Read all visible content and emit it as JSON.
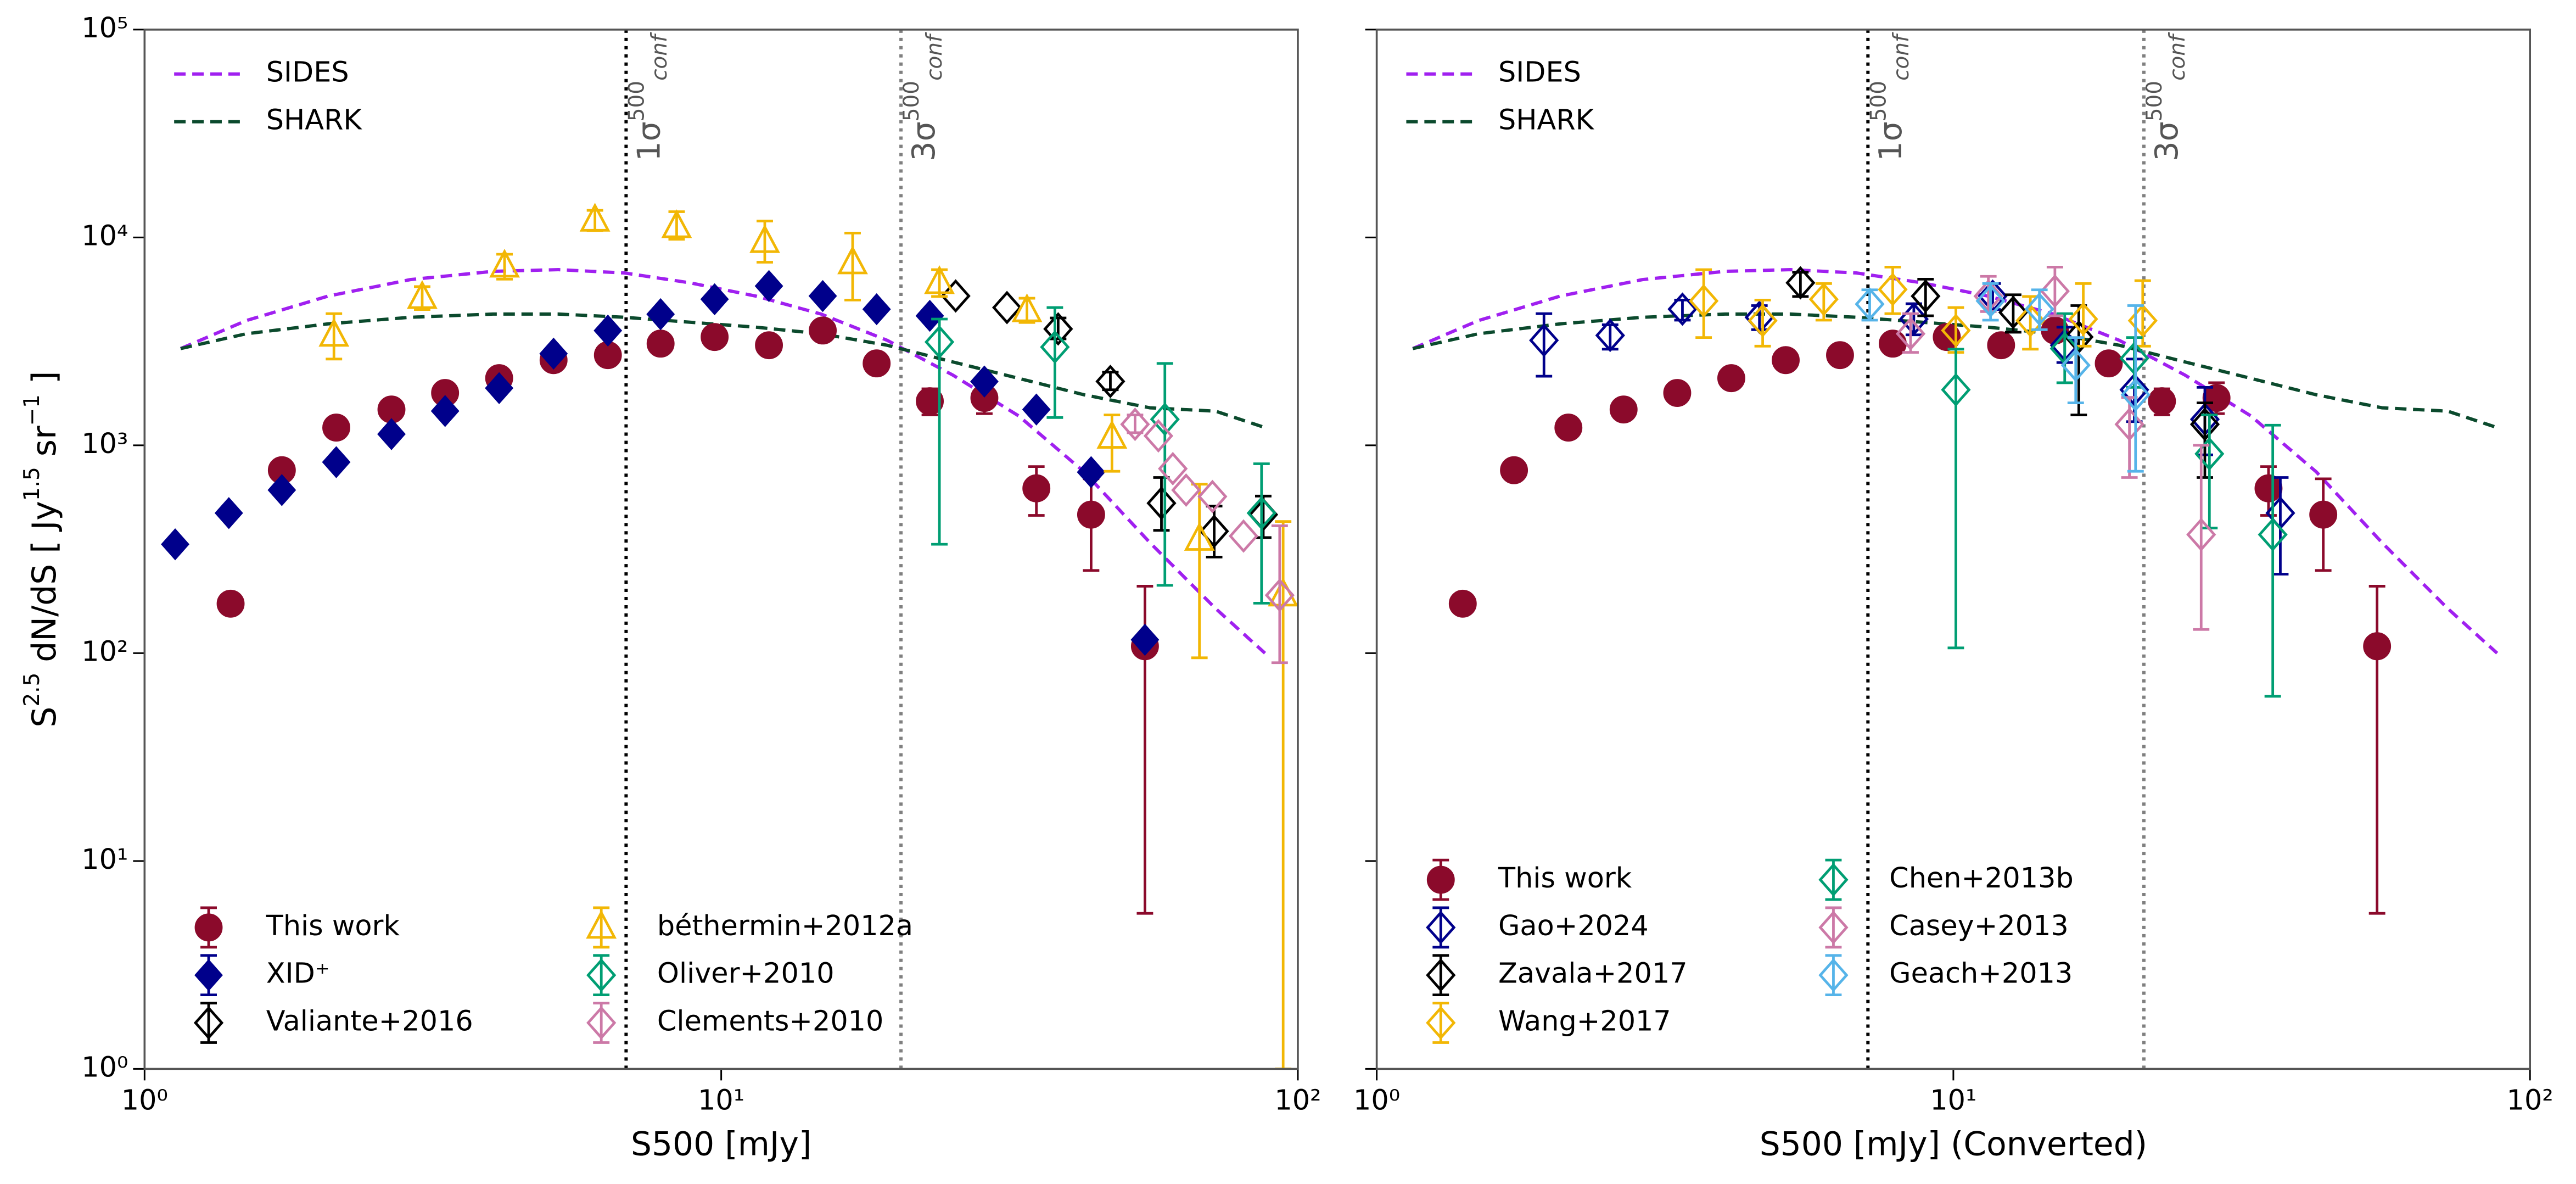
{
  "chart_data": [
    {
      "type": "errorbar",
      "xlabel": "S500 [mJy]",
      "ylabel": [
        "S",
        {
          "sup": "2.5"
        },
        " dN/dS [ Jy",
        {
          "sup": "1.5"
        },
        " sr",
        {
          "sup": "−1"
        },
        " ]"
      ],
      "log_x": true,
      "log_y": true,
      "xlim": [
        1,
        100
      ],
      "ylim": [
        1,
        100000
      ],
      "xticks": [
        {
          "value": 1,
          "label": "10⁰"
        },
        {
          "value": 10,
          "label": "10¹"
        },
        {
          "value": 100,
          "label": "10²"
        }
      ],
      "yticks": [
        {
          "value": 1,
          "label": "10⁰"
        },
        {
          "value": 10,
          "label": "10¹"
        },
        {
          "value": 100,
          "label": "10²"
        },
        {
          "value": 1000,
          "label": "10³"
        },
        {
          "value": 10000,
          "label": "10⁴"
        },
        {
          "value": 100000,
          "label": "10⁵"
        }
      ],
      "show_yticklabels": true,
      "vlines": [
        {
          "x": 6.84,
          "color": "#000000",
          "label": {
            "base": "1σ",
            "sup": "500",
            "sub": "conf"
          }
        },
        {
          "x": 20.5,
          "color": "#808080",
          "label": {
            "base": "3σ",
            "sup": "500",
            "sub": "conf"
          }
        }
      ],
      "line_legend": "upper left",
      "legend": "lower left",
      "legend_ncol": 2,
      "series": [
        {
          "name": "SIDES",
          "color": "#a020f0",
          "style": "dashed",
          "x": [
            1.155,
            1.5,
            2.08,
            2.89,
            4.02,
            5.22,
            6.79,
            8.83,
            11.5,
            14.9,
            19.4,
            25.2,
            32.8,
            42.6,
            55.4,
            72.0,
            87.7
          ],
          "values": [
            2920,
            3980,
            5220,
            6270,
            6870,
            7000,
            6750,
            6050,
            5220,
            4280,
            3200,
            2180,
            1385,
            745,
            340,
            164,
            100
          ]
        },
        {
          "name": "SHARK",
          "color": "#0b4a2d",
          "style": "dashed",
          "x": [
            1.155,
            1.5,
            2.08,
            2.89,
            4.02,
            5.22,
            6.79,
            8.83,
            11.5,
            14.9,
            19.4,
            25.2,
            32.8,
            42.6,
            55.4,
            72.0,
            87.7
          ],
          "values": [
            2920,
            3440,
            3840,
            4130,
            4280,
            4280,
            4130,
            3910,
            3700,
            3440,
            3030,
            2520,
            2100,
            1750,
            1515,
            1460,
            1217
          ]
        },
        {
          "name": "This work",
          "color": "#8b0a2b",
          "style": "marker",
          "marker": "circle",
          "filled": true,
          "x": [
            1.41,
            1.73,
            2.15,
            2.68,
            3.32,
            4.12,
            5.12,
            6.36,
            7.85,
            9.74,
            12.1,
            15.0,
            18.6,
            23.0,
            28.6,
            35.2,
            43.8,
            54.3
          ],
          "values": [
            173,
            759,
            1217,
            1487,
            1786,
            2104,
            2570,
            2716,
            3085,
            3320,
            3030,
            3567,
            2478,
            1630,
            1690,
            621,
            464,
            108
          ],
          "lower": [
            null,
            null,
            null,
            null,
            null,
            null,
            null,
            null,
            null,
            null,
            null,
            null,
            null,
            1400,
            1420,
            460,
            250,
            5.6
          ],
          "upper": [
            null,
            null,
            null,
            null,
            null,
            null,
            null,
            null,
            null,
            null,
            null,
            null,
            null,
            1870,
            2000,
            790,
            690,
            210
          ]
        },
        {
          "name": "XID⁺",
          "color": "#00008b",
          "style": "marker",
          "marker": "diamond",
          "filled": true,
          "x": [
            1.13,
            1.4,
            1.73,
            2.15,
            2.68,
            3.32,
            4.12,
            5.12,
            6.36,
            7.85,
            9.74,
            12.1,
            15.0,
            18.6,
            23.0,
            28.6,
            35.2,
            43.8,
            54.3
          ],
          "values": [
            334,
            472,
            609,
            830,
            1132,
            1462,
            1884,
            2761,
            3565,
            4274,
            5043,
            5838,
            5227,
            4516,
            4198,
            2027,
            1487,
            743,
            116
          ]
        },
        {
          "name": "Valiante+2016",
          "color": "#000000",
          "style": "marker",
          "marker": "diamond",
          "filled": false,
          "x": [
            25.5,
            31.3,
            38.4,
            47.3,
            58.0,
            71.6,
            87.1
          ],
          "values": [
            5230,
            4600,
            3630,
            2030,
            527,
            386,
            464
          ],
          "lower": [
            null,
            null,
            3250,
            1850,
            390,
            290,
            360
          ],
          "upper": [
            null,
            null,
            4100,
            2250,
            700,
            510,
            570
          ]
        },
        {
          "name": "béthermin+2012a",
          "color": "#f2b705",
          "style": "marker",
          "marker": "triangle",
          "filled": false,
          "x": [
            2.13,
            3.03,
            4.21,
            6.04,
            8.37,
            11.9,
            16.9,
            23.9,
            33.9,
            47.6,
            67.5,
            94.3
          ],
          "values": [
            3377,
            5130,
            7260,
            12080,
            11240,
            9530,
            7530,
            6050,
            4430,
            1091,
            352,
            190
          ],
          "lower": [
            2600,
            4500,
            6300,
            10800,
            9800,
            7600,
            5000,
            5200,
            3900,
            750,
            95,
            1
          ],
          "upper": [
            4300,
            5800,
            8300,
            13500,
            13300,
            12000,
            10500,
            7000,
            5100,
            1400,
            650,
            430
          ]
        },
        {
          "name": "Oliver+2010",
          "color": "#009e73",
          "style": "marker",
          "marker": "diamond",
          "filled": false,
          "x": [
            23.9,
            37.9,
            58.8,
            86.5
          ],
          "values": [
            3140,
            2970,
            1334,
            472
          ],
          "lower": [
            334,
            1360,
            212,
            174
          ],
          "upper": [
            4050,
            4600,
            2478,
            815
          ]
        },
        {
          "name": "Clements+2010",
          "color": "#cc79a7",
          "style": "marker",
          "marker": "diamond",
          "filled": false,
          "x": [
            52.2,
            57.3,
            60.7,
            64.0,
            71.1,
            80.5,
            93.0
          ],
          "values": [
            1262,
            1110,
            772,
            609,
            567,
            366,
            190
          ],
          "lower": [
            1150,
            null,
            null,
            null,
            null,
            null,
            90
          ],
          "upper": [
            1400,
            null,
            null,
            null,
            null,
            null,
            410
          ]
        }
      ]
    },
    {
      "type": "errorbar",
      "xlabel": "S500 [mJy] (Converted)",
      "log_x": true,
      "log_y": true,
      "xlim": [
        1,
        100
      ],
      "ylim": [
        1,
        100000
      ],
      "xticks": [
        {
          "value": 1,
          "label": "10⁰"
        },
        {
          "value": 10,
          "label": "10¹"
        },
        {
          "value": 100,
          "label": "10²"
        }
      ],
      "yticks": [
        1,
        10,
        100,
        1000,
        10000,
        100000
      ],
      "show_yticklabels": false,
      "vlines": [
        {
          "x": 7.11,
          "color": "#000000",
          "label": {
            "base": "1σ",
            "sup": "500",
            "sub": "conf"
          }
        },
        {
          "x": 21.4,
          "color": "#808080",
          "label": {
            "base": "3σ",
            "sup": "500",
            "sub": "conf"
          }
        }
      ],
      "line_legend": "upper left",
      "legend": "lower left",
      "legend_ncol": 2,
      "series": [
        {
          "name": "SIDES",
          "color": "#a020f0",
          "style": "dashed",
          "x": [
            1.155,
            1.5,
            2.08,
            2.89,
            4.02,
            5.22,
            6.79,
            8.83,
            11.5,
            14.9,
            19.4,
            25.2,
            32.8,
            42.6,
            55.4,
            72.0,
            87.7
          ],
          "values": [
            2920,
            3980,
            5220,
            6270,
            6870,
            7000,
            6750,
            6050,
            5220,
            4280,
            3200,
            2180,
            1385,
            745,
            340,
            164,
            100
          ]
        },
        {
          "name": "SHARK",
          "color": "#0b4a2d",
          "style": "dashed",
          "x": [
            1.155,
            1.5,
            2.08,
            2.89,
            4.02,
            5.22,
            6.79,
            8.83,
            11.5,
            14.9,
            19.4,
            25.2,
            32.8,
            42.6,
            55.4,
            72.0,
            87.7
          ],
          "values": [
            2920,
            3440,
            3840,
            4130,
            4280,
            4280,
            4130,
            3910,
            3700,
            3440,
            3030,
            2520,
            2100,
            1750,
            1515,
            1460,
            1217
          ]
        },
        {
          "name": "This work",
          "color": "#8b0a2b",
          "style": "marker",
          "marker": "circle",
          "filled": true,
          "x": [
            1.41,
            1.73,
            2.15,
            2.68,
            3.32,
            4.12,
            5.12,
            6.36,
            7.85,
            9.74,
            12.1,
            15.0,
            18.6,
            23.0,
            28.6,
            35.2,
            43.8,
            54.3
          ],
          "values": [
            173,
            759,
            1217,
            1487,
            1786,
            2104,
            2570,
            2716,
            3085,
            3320,
            3030,
            3567,
            2478,
            1630,
            1690,
            621,
            464,
            108
          ],
          "lower": [
            null,
            null,
            null,
            null,
            null,
            null,
            null,
            null,
            null,
            null,
            null,
            null,
            null,
            1400,
            1420,
            460,
            250,
            5.6
          ],
          "upper": [
            null,
            null,
            null,
            null,
            null,
            null,
            null,
            null,
            null,
            null,
            null,
            null,
            null,
            1870,
            2000,
            790,
            690,
            210
          ]
        },
        {
          "name": "Gao+2024",
          "color": "#00008b",
          "style": "marker",
          "marker": "diamond",
          "filled": false,
          "x": [
            1.95,
            2.54,
            3.39,
            4.61,
            8.54,
            11.7,
            15.6,
            20.6,
            27.3,
            36.9
          ],
          "values": [
            3200,
            3380,
            4520,
            4130,
            4050,
            5220,
            3030,
            1850,
            1334,
            472
          ],
          "lower": [
            2150,
            2900,
            4000,
            3600,
            3400,
            4500,
            2500,
            1300,
            900,
            240
          ],
          "upper": [
            4300,
            3800,
            5000,
            4700,
            4800,
            6000,
            3700,
            2600,
            1900,
            700
          ]
        },
        {
          "name": "Zavala+2017",
          "color": "#000000",
          "style": "marker",
          "marker": "diamond",
          "filled": false,
          "x": [
            5.43,
            8.95,
            12.7,
            16.5,
            27.3
          ],
          "values": [
            6050,
            5220,
            4360,
            3320,
            1262
          ],
          "lower": [
            5200,
            4200,
            3500,
            1400,
            700
          ],
          "upper": [
            6800,
            6300,
            5300,
            4700,
            1600
          ]
        },
        {
          "name": "Wang+2017",
          "color": "#f2b705",
          "style": "marker",
          "marker": "diamond",
          "filled": false,
          "x": [
            3.69,
            4.67,
            5.96,
            7.85,
            10.1,
            13.6,
            16.8,
            21.3
          ],
          "values": [
            4950,
            3980,
            5040,
            5620,
            3570,
            3980,
            4050,
            3980
          ],
          "lower": [
            3300,
            3000,
            4000,
            4300,
            2800,
            2900,
            3000,
            3000
          ],
          "upper": [
            7000,
            5000,
            6000,
            7200,
            4600,
            5200,
            6000,
            6200
          ]
        },
        {
          "name": "Chen+2013b",
          "color": "#009e73",
          "style": "marker",
          "marker": "diamond",
          "filled": false,
          "x": [
            10.1,
            15.6,
            20.6,
            27.8,
            35.8
          ],
          "values": [
            1850,
            2920,
            2620,
            910,
            372
          ],
          "lower": [
            106,
            2000,
            1900,
            400,
            62
          ],
          "upper": [
            2900,
            4300,
            3300,
            1400,
            1250
          ]
        },
        {
          "name": "Casey+2013",
          "color": "#cc79a7",
          "style": "marker",
          "marker": "diamond",
          "filled": false,
          "x": [
            8.43,
            11.5,
            15.0,
            20.2,
            26.9
          ],
          "values": [
            3440,
            5220,
            5520,
            1262,
            372
          ],
          "lower": [
            2800,
            4400,
            4200,
            700,
            130
          ],
          "upper": [
            4300,
            6500,
            7200,
            1700,
            1000
          ]
        },
        {
          "name": "Geach+2013",
          "color": "#56b4e9",
          "style": "marker",
          "marker": "diamond",
          "filled": false,
          "x": [
            7.16,
            11.6,
            14.1,
            16.3,
            20.7
          ],
          "values": [
            4780,
            4950,
            4520,
            2430,
            1750
          ],
          "lower": [
            4000,
            4000,
            3600,
            1600,
            750
          ],
          "upper": [
            5600,
            6000,
            5600,
            3300,
            4700
          ]
        }
      ]
    }
  ]
}
